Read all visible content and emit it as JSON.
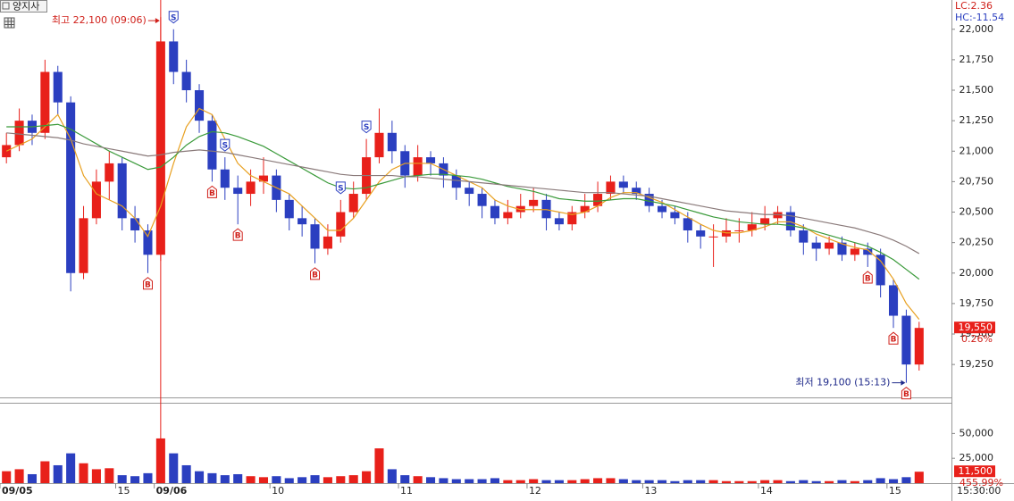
{
  "chart_data": {
    "type": "candlestick",
    "title": "양지사",
    "lc_label": "LC:2.36",
    "hc_label": "HC:-11.54",
    "high_annotation": "최고 22,100 (09:06)",
    "low_annotation": "최저 19,100 (15:13)",
    "time_label": "15:30:00",
    "colors": {
      "up": "#e8201a",
      "down": "#2b3fc0"
    },
    "ylim": [
      18980,
      22240
    ],
    "yticks": [
      {
        "value": 19250,
        "label": "19,250"
      },
      {
        "value": 19500,
        "label": "19,500"
      },
      {
        "value": 19750,
        "label": "19,750"
      },
      {
        "value": 20000,
        "label": "20,000"
      },
      {
        "value": 20250,
        "label": "20,250"
      },
      {
        "value": 20500,
        "label": "20,500"
      },
      {
        "value": 20750,
        "label": "20,750"
      },
      {
        "value": 21000,
        "label": "21,000"
      },
      {
        "value": 21250,
        "label": "21,250"
      },
      {
        "value": 21500,
        "label": "21,500"
      },
      {
        "value": 21750,
        "label": "21,750"
      },
      {
        "value": 22000,
        "label": "22,000"
      }
    ],
    "categories": [
      "09/05",
      null,
      null,
      null,
      null,
      null,
      null,
      null,
      null,
      "15",
      null,
      null,
      "09/06",
      null,
      null,
      null,
      null,
      null,
      null,
      null,
      null,
      "10",
      null,
      null,
      null,
      null,
      null,
      null,
      null,
      null,
      null,
      "11",
      null,
      null,
      null,
      null,
      null,
      null,
      null,
      null,
      null,
      "12",
      null,
      null,
      null,
      null,
      null,
      null,
      null,
      null,
      "13",
      null,
      null,
      null,
      null,
      null,
      null,
      null,
      null,
      "14",
      null,
      null,
      null,
      null,
      null,
      null,
      null,
      null,
      null,
      "15",
      null,
      null
    ],
    "open": [
      20950,
      21050,
      21250,
      21150,
      21650,
      21400,
      20000,
      20450,
      20750,
      20900,
      20450,
      20350,
      20150,
      21900,
      21650,
      21500,
      21250,
      20850,
      20700,
      20650,
      20750,
      20800,
      20600,
      20450,
      20400,
      20200,
      20300,
      20500,
      20650,
      20950,
      21150,
      21000,
      20800,
      20950,
      20900,
      20800,
      20700,
      20650,
      20550,
      20450,
      20500,
      20550,
      20600,
      20450,
      20400,
      20500,
      20550,
      20650,
      20750,
      20700,
      20650,
      20550,
      20500,
      20450,
      20350,
      20300,
      20300,
      20350,
      20350,
      20400,
      20450,
      20500,
      20350,
      20250,
      20200,
      20250,
      20150,
      20200,
      20150,
      19900,
      19650,
      19250
    ],
    "high": [
      21150,
      21350,
      21300,
      21750,
      21700,
      21450,
      20550,
      20850,
      21000,
      20950,
      20550,
      20400,
      22100,
      22000,
      21750,
      21550,
      21300,
      20950,
      20800,
      20850,
      20950,
      20850,
      20650,
      20550,
      20450,
      20400,
      20600,
      20750,
      21100,
      21350,
      21250,
      21050,
      21050,
      21000,
      20950,
      20850,
      20750,
      20700,
      20600,
      20600,
      20650,
      20700,
      20650,
      20500,
      20550,
      20650,
      20750,
      20800,
      20800,
      20750,
      20700,
      20600,
      20550,
      20500,
      20400,
      20400,
      20450,
      20450,
      20500,
      20550,
      20550,
      20550,
      20400,
      20300,
      20300,
      20300,
      20250,
      20250,
      20200,
      19950,
      19700,
      19600
    ],
    "low": [
      20900,
      21000,
      21050,
      21100,
      21300,
      19850,
      19950,
      20400,
      20600,
      20350,
      20250,
      20000,
      20100,
      21550,
      21400,
      21150,
      20750,
      20600,
      20400,
      20550,
      20650,
      20500,
      20350,
      20300,
      20080,
      20150,
      20250,
      20450,
      20600,
      20900,
      20900,
      20700,
      20750,
      20800,
      20700,
      20600,
      20550,
      20450,
      20400,
      20400,
      20450,
      20500,
      20350,
      20350,
      20350,
      20450,
      20500,
      20600,
      20650,
      20600,
      20500,
      20450,
      20400,
      20250,
      20200,
      20050,
      20250,
      20250,
      20300,
      20350,
      20400,
      20300,
      20150,
      20100,
      20150,
      20100,
      20100,
      20050,
      19800,
      19550,
      19100,
      19200
    ],
    "close": [
      21050,
      21250,
      21150,
      21650,
      21400,
      20000,
      20450,
      20750,
      20900,
      20450,
      20350,
      20150,
      21900,
      21650,
      21500,
      21250,
      20850,
      20700,
      20650,
      20750,
      20800,
      20600,
      20450,
      20400,
      20200,
      20300,
      20500,
      20650,
      20950,
      21150,
      21000,
      20800,
      20950,
      20900,
      20800,
      20700,
      20650,
      20550,
      20450,
      20500,
      20550,
      20600,
      20450,
      20400,
      20500,
      20550,
      20650,
      20750,
      20700,
      20650,
      20550,
      20500,
      20450,
      20350,
      20300,
      20300,
      20350,
      20350,
      20400,
      20450,
      20500,
      20350,
      20250,
      20200,
      20250,
      20150,
      20200,
      20150,
      19900,
      19650,
      19250,
      19550
    ],
    "moving_averages": [
      {
        "color": "#e8a020",
        "values": [
          21000,
          21050,
          21100,
          21200,
          21300,
          21100,
          20800,
          20650,
          20600,
          20550,
          20450,
          20300,
          20550,
          20900,
          21200,
          21350,
          21300,
          21100,
          20900,
          20800,
          20750,
          20700,
          20650,
          20550,
          20450,
          20350,
          20350,
          20450,
          20600,
          20750,
          20850,
          20900,
          20900,
          20900,
          20850,
          20800,
          20750,
          20700,
          20600,
          20550,
          20520,
          20520,
          20520,
          20500,
          20480,
          20500,
          20550,
          20620,
          20660,
          20660,
          20620,
          20580,
          20520,
          20460,
          20400,
          20350,
          20330,
          20330,
          20350,
          20380,
          20420,
          20420,
          20380,
          20320,
          20280,
          20240,
          20210,
          20190,
          20100,
          19950,
          19750,
          19620
        ]
      },
      {
        "color": "#3a9a3a",
        "values": [
          21200,
          21200,
          21200,
          21210,
          21220,
          21180,
          21120,
          21060,
          21000,
          20950,
          20900,
          20850,
          20870,
          20950,
          21050,
          21120,
          21160,
          21150,
          21120,
          21080,
          21040,
          20980,
          20920,
          20860,
          20800,
          20740,
          20700,
          20690,
          20700,
          20730,
          20760,
          20790,
          20800,
          20810,
          20810,
          20800,
          20790,
          20770,
          20740,
          20710,
          20690,
          20670,
          20640,
          20610,
          20600,
          20590,
          20590,
          20600,
          20610,
          20610,
          20590,
          20570,
          20550,
          20520,
          20490,
          20460,
          20440,
          20420,
          20410,
          20400,
          20400,
          20390,
          20370,
          20340,
          20310,
          20280,
          20250,
          20220,
          20170,
          20110,
          20030,
          19950
        ]
      },
      {
        "color": "#8a7a7a",
        "values": [
          21150,
          21140,
          21130,
          21120,
          21110,
          21090,
          21060,
          21040,
          21020,
          21000,
          20980,
          20960,
          20970,
          20990,
          21000,
          21010,
          21000,
          20990,
          20970,
          20950,
          20930,
          20910,
          20890,
          20870,
          20850,
          20830,
          20810,
          20800,
          20800,
          20800,
          20800,
          20790,
          20790,
          20780,
          20770,
          20760,
          20750,
          20740,
          20730,
          20720,
          20710,
          20700,
          20690,
          20680,
          20670,
          20660,
          20660,
          20660,
          20650,
          20640,
          20630,
          20610,
          20590,
          20570,
          20550,
          20530,
          20510,
          20500,
          20490,
          20480,
          20480,
          20470,
          20450,
          20430,
          20410,
          20390,
          20370,
          20340,
          20310,
          20270,
          20220,
          20160
        ]
      }
    ],
    "signals": [
      null,
      null,
      null,
      null,
      null,
      null,
      null,
      null,
      null,
      null,
      null,
      "B",
      null,
      "S",
      null,
      null,
      "B",
      "S",
      "B",
      null,
      null,
      null,
      null,
      null,
      "B",
      null,
      "S",
      null,
      "S",
      null,
      null,
      null,
      null,
      null,
      null,
      null,
      null,
      null,
      null,
      null,
      null,
      null,
      null,
      null,
      null,
      null,
      null,
      null,
      null,
      null,
      null,
      null,
      null,
      null,
      null,
      null,
      null,
      null,
      null,
      null,
      null,
      null,
      null,
      null,
      null,
      null,
      null,
      "B",
      null,
      "B",
      "B",
      null
    ],
    "last_price": {
      "value": 19550,
      "label": "19,550"
    },
    "last_change": "0.26%",
    "volume": {
      "values": [
        12000,
        14000,
        9000,
        22000,
        18000,
        30000,
        20000,
        14000,
        15000,
        8000,
        7000,
        10000,
        45000,
        30000,
        18000,
        12000,
        10000,
        8000,
        9000,
        7000,
        6000,
        7000,
        5000,
        6000,
        8000,
        6000,
        7000,
        8000,
        12000,
        35000,
        14000,
        8000,
        7000,
        6000,
        5000,
        4000,
        4000,
        4000,
        5000,
        3000,
        3000,
        4000,
        3000,
        3000,
        3000,
        4000,
        5000,
        5000,
        4000,
        3000,
        3000,
        3000,
        2000,
        3000,
        3000,
        3000,
        2000,
        2000,
        2000,
        3000,
        3000,
        2000,
        3000,
        2000,
        2000,
        3000,
        2000,
        3000,
        5000,
        4000,
        6000,
        11500
      ],
      "ylim": [
        0,
        80000
      ],
      "yticks": [
        {
          "value": 25000,
          "label": "25,000"
        },
        {
          "value": 50000,
          "label": "50,000"
        }
      ],
      "last": {
        "value": 11500,
        "label": "11,500"
      },
      "ratio": "455.99%"
    }
  }
}
